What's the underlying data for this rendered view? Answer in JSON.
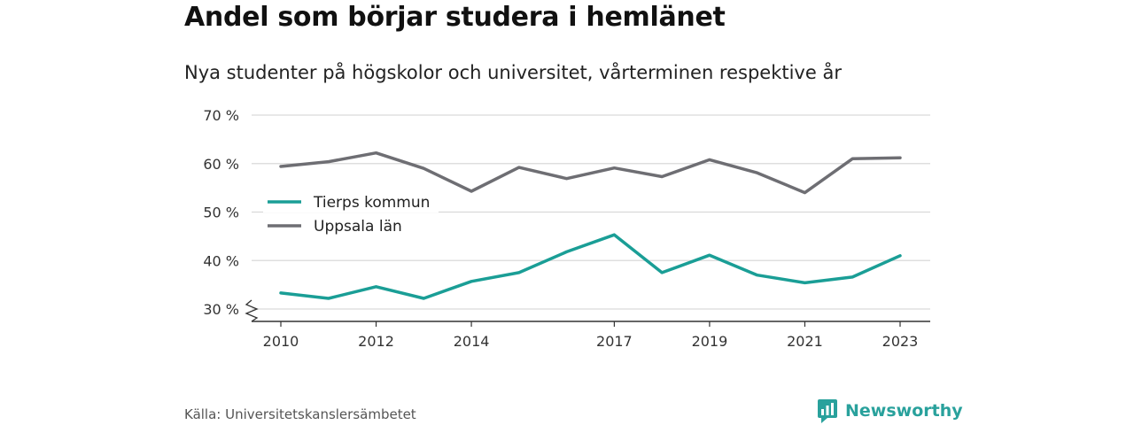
{
  "header": {
    "title": "Andel som börjar studera i hemlänet",
    "subtitle": "Nya studenter på högskolor och universitet, vårterminen respektive år"
  },
  "footer": {
    "source": "Källa: Universitetskanslersämbetet",
    "brand": "Newsworthy"
  },
  "colors": {
    "tierp": "#1a9e96",
    "uppsala": "#6e6e73",
    "brand": "#29a19c"
  },
  "chart_data": {
    "type": "line",
    "x": [
      2010,
      2011,
      2012,
      2013,
      2014,
      2015,
      2016,
      2017,
      2018,
      2019,
      2020,
      2021,
      2022,
      2023
    ],
    "x_tick_labels": [
      "2010",
      "2012",
      "2014",
      "2017",
      "2019",
      "2021",
      "2023"
    ],
    "y_tick_labels": [
      "30 %",
      "40 %",
      "50 %",
      "60 %",
      "70 %"
    ],
    "y_ticks": [
      30,
      40,
      50,
      60,
      70
    ],
    "ylim": [
      30,
      70
    ],
    "xlim": [
      2010,
      2023
    ],
    "grid": true,
    "axis_break": true,
    "legend_position": "left",
    "series": [
      {
        "name": "Tierps kommun",
        "color": "#1a9e96",
        "values": [
          33.3,
          32.2,
          34.6,
          32.2,
          35.7,
          37.5,
          41.8,
          45.3,
          37.5,
          41.1,
          37.0,
          35.4,
          36.6,
          41.0
        ]
      },
      {
        "name": "Uppsala län",
        "color": "#6e6e73",
        "values": [
          59.4,
          60.4,
          62.2,
          59.0,
          54.3,
          59.2,
          56.9,
          59.1,
          57.3,
          60.8,
          58.1,
          54.0,
          61.0,
          61.2
        ]
      }
    ]
  }
}
